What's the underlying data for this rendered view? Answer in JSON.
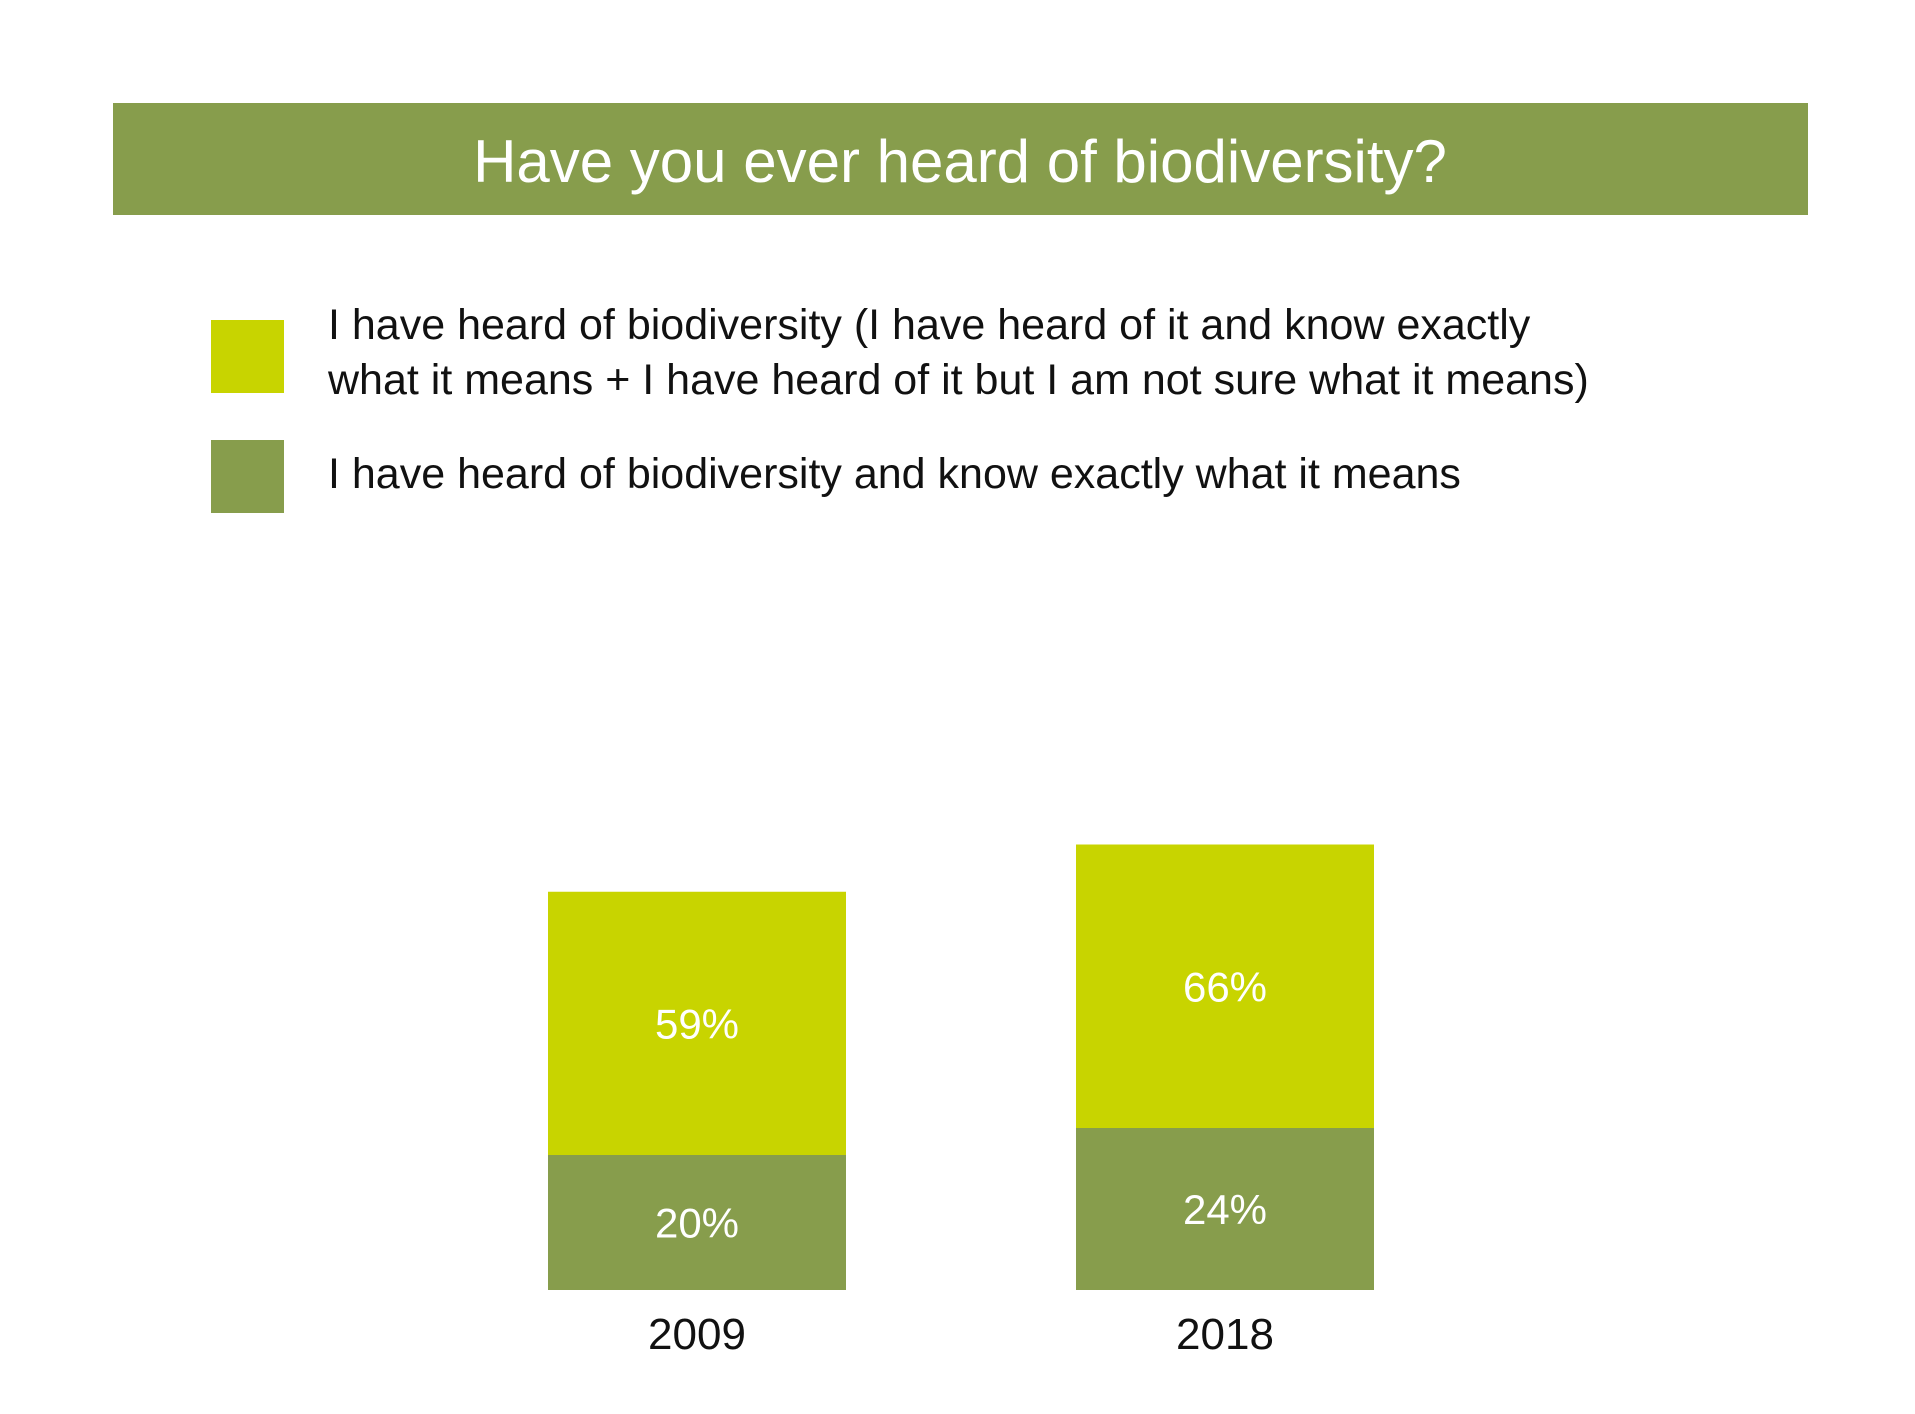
{
  "chart_data": {
    "type": "bar",
    "stacked": false,
    "title": "Have you ever heard of biodiversity?",
    "categories": [
      "2009",
      "2018"
    ],
    "series": [
      {
        "name": "I have heard of biodiversity (I have heard of it and know exactly what it means + I have heard of it but I am not sure what it means)",
        "values": [
          59,
          66
        ],
        "labels": [
          "59%",
          "66%"
        ],
        "color": "#c8d400"
      },
      {
        "name": "I have heard of biodiversity and know exactly what it means",
        "values": [
          20,
          24
        ],
        "labels": [
          "20%",
          "24%"
        ],
        "color": "#879d4c"
      }
    ],
    "legend": {
      "placement": "top",
      "lines": [
        [
          "I have heard of biodiversity (I have heard of it and know exactly",
          "what it means + I have heard of it but I am not sure what it means)"
        ],
        [
          "I have heard of biodiversity and know exactly what it means"
        ]
      ]
    },
    "value_unit": "%",
    "ylim": [
      0,
      100
    ],
    "grid": false,
    "axes_visible": false
  },
  "colors": {
    "title_banner": "#879d4c",
    "title_text": "#ffffff",
    "label_text": "#ffffff",
    "body_text": "#111111"
  }
}
